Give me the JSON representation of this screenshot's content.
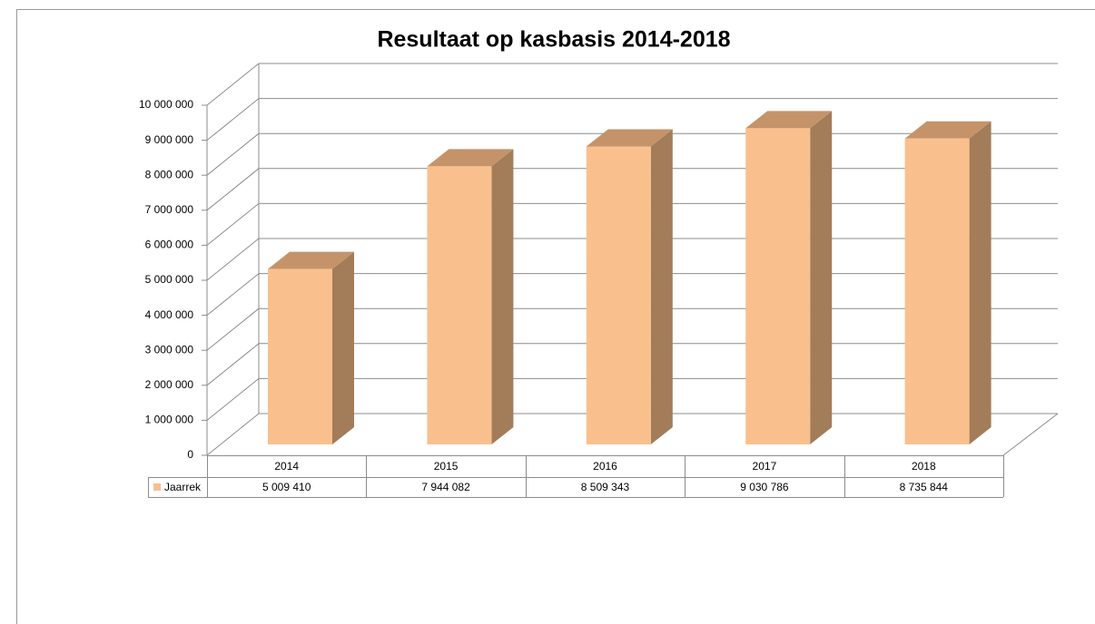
{
  "chart_data": {
    "type": "bar3d",
    "title": "Resultaat op kasbasis 2014-2018",
    "categories": [
      "2014",
      "2015",
      "2016",
      "2017",
      "2018"
    ],
    "series": [
      {
        "name": "Jaarrek",
        "color": "#F9C08E",
        "values": [
          5009410,
          7944082,
          8509343,
          9030786,
          8735844
        ],
        "value_labels": [
          "5 009 410",
          "7 944 082",
          "8 509 343",
          "9 030 786",
          "8 735 844"
        ]
      }
    ],
    "ylim": [
      0,
      10000000
    ],
    "yticks": [
      0,
      {
        "value": 1000000,
        "label": "1 000 000"
      },
      {
        "value": 2000000,
        "label": "2 000 000"
      },
      {
        "value": 3000000,
        "label": "3 000 000"
      },
      {
        "value": 4000000,
        "label": "4 000 000"
      },
      {
        "value": 5000000,
        "label": "5 000 000"
      },
      {
        "value": 6000000,
        "label": "6 000 000"
      },
      {
        "value": 7000000,
        "label": "7 000 000"
      },
      {
        "value": 8000000,
        "label": "8 000 000"
      },
      {
        "value": 9000000,
        "label": "9 000 000"
      },
      {
        "value": 10000000,
        "label": "10 000 000"
      }
    ],
    "grid": true,
    "data_table": true
  }
}
